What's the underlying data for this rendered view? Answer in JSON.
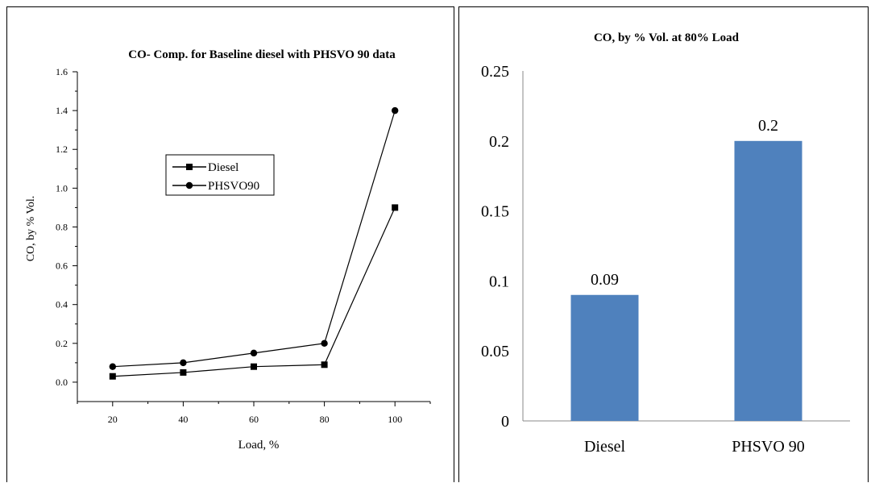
{
  "chart_data": [
    {
      "type": "line",
      "title": "CO- Comp. for Baseline diesel with PHSVO 90 data",
      "xlabel": "Load, %",
      "ylabel": "CO, by % Vol.",
      "x": [
        20,
        40,
        60,
        80,
        100
      ],
      "xlim": [
        10,
        110
      ],
      "xticks": [
        20,
        40,
        60,
        80,
        100
      ],
      "ylim": [
        -0.1,
        1.6
      ],
      "yticks": [
        "0.0",
        "0.2",
        "0.4",
        "0.6",
        "0.8",
        "1.0",
        "1.2",
        "1.4",
        "1.6"
      ],
      "grid": false,
      "legend_position": "center-left",
      "series": [
        {
          "name": "Diesel",
          "marker": "square",
          "values": [
            0.03,
            0.05,
            0.08,
            0.09,
            0.9
          ]
        },
        {
          "name": "PHSVO90",
          "marker": "circle",
          "values": [
            0.08,
            0.1,
            0.15,
            0.2,
            1.4
          ]
        }
      ]
    },
    {
      "type": "bar",
      "title": "CO, by % Vol. at 80% Load",
      "xlabel": "",
      "ylabel": "",
      "categories": [
        "Diesel",
        "PHSVO 90"
      ],
      "values": [
        0.09,
        0.2
      ],
      "data_labels": [
        "0.09",
        "0.2"
      ],
      "ylim": [
        0,
        0.25
      ],
      "yticks": [
        "0",
        "0.05",
        "0.1",
        "0.15",
        "0.2",
        "0.25"
      ],
      "grid": false,
      "bar_color": "#4f81bd"
    }
  ]
}
